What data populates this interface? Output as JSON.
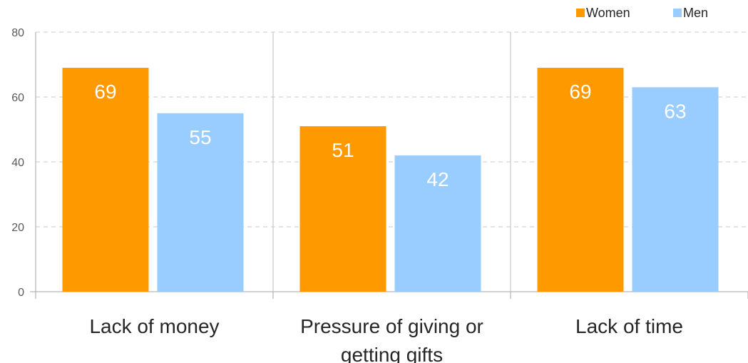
{
  "chart_data": {
    "type": "bar",
    "categories": [
      [
        "Lack of money"
      ],
      [
        "Pressure of giving or",
        "getting gifts"
      ],
      [
        "Lack of time"
      ]
    ],
    "series": [
      {
        "name": "Women",
        "color": "#FF9900",
        "values": [
          69,
          51,
          69
        ]
      },
      {
        "name": "Men",
        "color": "#99CCFF",
        "values": [
          55,
          42,
          63
        ]
      }
    ],
    "y_ticks": [
      "0",
      "20",
      "40",
      "60",
      "80"
    ],
    "ylim": [
      0,
      80
    ],
    "grid": true,
    "legend_position": "top-right",
    "title": "",
    "xlabel": "",
    "ylabel": ""
  }
}
